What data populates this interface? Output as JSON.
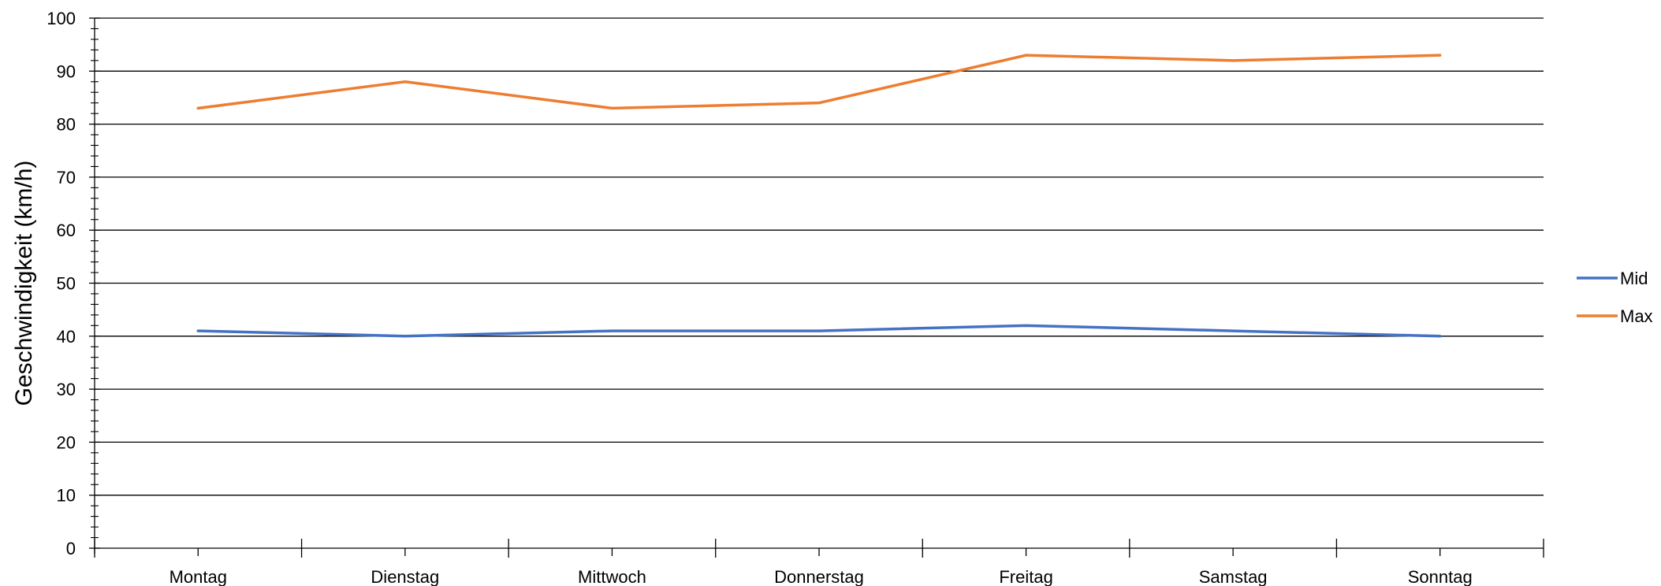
{
  "chart_data": {
    "type": "line",
    "categories": [
      "Montag",
      "Dienstag",
      "Mittwoch",
      "Donnerstag",
      "Freitag",
      "Samstag",
      "Sonntag"
    ],
    "series": [
      {
        "name": "Mid",
        "values": [
          41,
          40,
          41,
          41,
          42,
          41,
          40
        ],
        "color": "#4472C4"
      },
      {
        "name": "Max",
        "values": [
          83,
          88,
          83,
          84,
          93,
          92,
          93
        ],
        "color": "#ED7D31"
      }
    ],
    "ylabel": "Geschwindigkeit (km/h)",
    "ylim": [
      0,
      100
    ],
    "yticks": [
      0,
      10,
      20,
      30,
      40,
      50,
      60,
      70,
      80,
      90,
      100
    ],
    "grid": true,
    "legend_position": "right"
  }
}
